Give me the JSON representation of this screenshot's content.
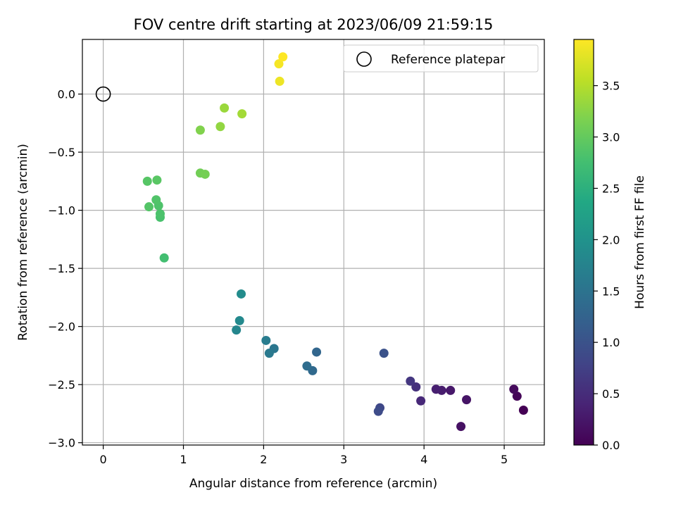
{
  "chart_data": {
    "type": "scatter",
    "title": "FOV centre drift starting at 2023/06/09 21:59:15",
    "xlabel": "Angular distance from reference (arcmin)",
    "ylabel": "Rotation from reference (arcmin)",
    "xlim": [
      -0.26,
      5.5
    ],
    "ylim": [
      -3.02,
      0.47
    ],
    "x_ticks": [
      0,
      1,
      2,
      3,
      4,
      5
    ],
    "x_tick_labels": [
      "0",
      "1",
      "2",
      "3",
      "4",
      "5"
    ],
    "y_ticks": [
      0.0,
      -0.5,
      -1.0,
      -1.5,
      -2.0,
      -2.5,
      -3.0
    ],
    "y_tick_labels": [
      "0.0",
      "−0.5",
      "−1.0",
      "−1.5",
      "−2.0",
      "−2.5",
      "−3.0"
    ],
    "grid": true,
    "colormap": "viridis",
    "colorbar": {
      "label": "Hours from first FF file",
      "range": [
        0,
        3.95
      ],
      "ticks": [
        0.0,
        0.5,
        1.0,
        1.5,
        2.0,
        2.5,
        3.0,
        3.5
      ],
      "tick_labels": [
        "0.0",
        "0.5",
        "1.0",
        "1.5",
        "2.0",
        "2.5",
        "3.0",
        "3.5"
      ]
    },
    "legend": {
      "placement": "top-right",
      "entries": [
        {
          "label": "Reference platepar",
          "marker": "open-circle"
        }
      ]
    },
    "reference_point": {
      "x": 0,
      "y": 0
    },
    "points": [
      {
        "x": 5.24,
        "y": -2.72,
        "c": 0.0
      },
      {
        "x": 5.16,
        "y": -2.6,
        "c": 0.05
      },
      {
        "x": 5.12,
        "y": -2.54,
        "c": 0.1
      },
      {
        "x": 4.46,
        "y": -2.86,
        "c": 0.18
      },
      {
        "x": 4.53,
        "y": -2.63,
        "c": 0.22
      },
      {
        "x": 4.33,
        "y": -2.55,
        "c": 0.26
      },
      {
        "x": 4.22,
        "y": -2.55,
        "c": 0.3
      },
      {
        "x": 4.15,
        "y": -2.54,
        "c": 0.34
      },
      {
        "x": 3.96,
        "y": -2.64,
        "c": 0.45
      },
      {
        "x": 3.9,
        "y": -2.52,
        "c": 0.55
      },
      {
        "x": 3.83,
        "y": -2.47,
        "c": 0.63
      },
      {
        "x": 3.45,
        "y": -2.7,
        "c": 0.85
      },
      {
        "x": 3.43,
        "y": -2.73,
        "c": 0.9
      },
      {
        "x": 3.5,
        "y": -2.23,
        "c": 1.0
      },
      {
        "x": 2.66,
        "y": -2.22,
        "c": 1.3
      },
      {
        "x": 2.61,
        "y": -2.38,
        "c": 1.35
      },
      {
        "x": 2.54,
        "y": -2.34,
        "c": 1.4
      },
      {
        "x": 2.13,
        "y": -2.19,
        "c": 1.55
      },
      {
        "x": 2.07,
        "y": -2.23,
        "c": 1.6
      },
      {
        "x": 2.03,
        "y": -2.12,
        "c": 1.65
      },
      {
        "x": 1.66,
        "y": -2.03,
        "c": 1.8
      },
      {
        "x": 1.7,
        "y": -1.95,
        "c": 1.85
      },
      {
        "x": 1.72,
        "y": -1.72,
        "c": 1.9
      },
      {
        "x": 0.76,
        "y": -1.41,
        "c": 2.75
      },
      {
        "x": 0.71,
        "y": -1.06,
        "c": 2.8
      },
      {
        "x": 0.71,
        "y": -1.03,
        "c": 2.82
      },
      {
        "x": 0.69,
        "y": -0.96,
        "c": 2.84
      },
      {
        "x": 0.66,
        "y": -0.91,
        "c": 2.86
      },
      {
        "x": 0.57,
        "y": -0.97,
        "c": 2.88
      },
      {
        "x": 0.55,
        "y": -0.75,
        "c": 2.9
      },
      {
        "x": 0.67,
        "y": -0.74,
        "c": 2.92
      },
      {
        "x": 1.21,
        "y": -0.68,
        "c": 3.1
      },
      {
        "x": 1.27,
        "y": -0.69,
        "c": 3.12
      },
      {
        "x": 1.21,
        "y": -0.31,
        "c": 3.2
      },
      {
        "x": 1.46,
        "y": -0.28,
        "c": 3.3
      },
      {
        "x": 1.51,
        "y": -0.12,
        "c": 3.35
      },
      {
        "x": 1.73,
        "y": -0.17,
        "c": 3.4
      },
      {
        "x": 2.2,
        "y": 0.11,
        "c": 3.85
      },
      {
        "x": 2.19,
        "y": 0.26,
        "c": 3.9
      },
      {
        "x": 2.24,
        "y": 0.32,
        "c": 3.95
      }
    ]
  }
}
